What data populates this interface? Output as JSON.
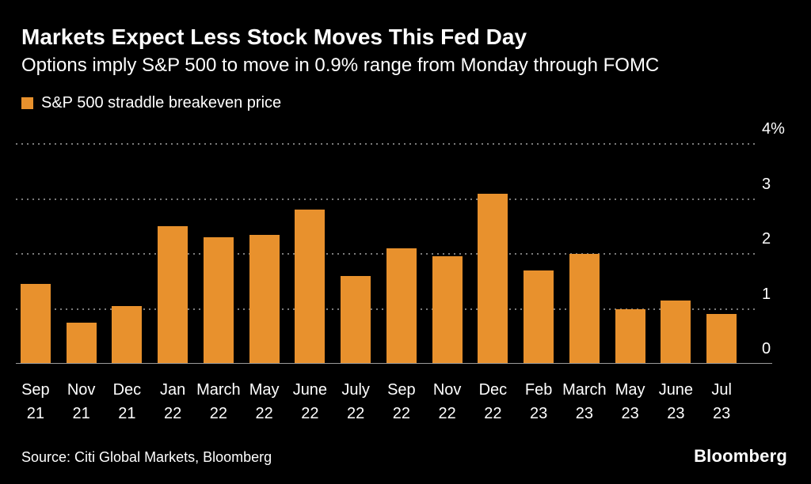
{
  "colors": {
    "background": "#000000",
    "bar": "#E8912D",
    "text": "#FFFFFF"
  },
  "footer": {
    "source": "Source: Citi Global Markets, Bloomberg",
    "brand": "Bloomberg"
  },
  "chart_data": {
    "type": "bar",
    "title": "Markets Expect Less Stock Moves This Fed Day",
    "subtitle": "Options imply S&P 500 to move in 0.9% range from Monday through FOMC",
    "legend": [
      "S&P 500 straddle breakeven price"
    ],
    "legend_position": "top-left",
    "categories": [
      "Sep 21",
      "Nov 21",
      "Dec 21",
      "Jan 22",
      "March 22",
      "May 22",
      "June 22",
      "July 22",
      "Sep 22",
      "Nov 22",
      "Dec 22",
      "Feb 23",
      "March 23",
      "May 23",
      "June 23",
      "Jul 23"
    ],
    "values": [
      1.45,
      0.75,
      1.05,
      2.5,
      2.3,
      2.35,
      2.8,
      1.6,
      2.1,
      1.95,
      3.1,
      1.7,
      2.0,
      1.0,
      1.15,
      0.9
    ],
    "xlabel": "",
    "ylabel": "",
    "ylim": [
      0,
      4
    ],
    "yticks": [
      {
        "value": 4,
        "label": "4%"
      },
      {
        "value": 3,
        "label": "3"
      },
      {
        "value": 2,
        "label": "2"
      },
      {
        "value": 1,
        "label": "1"
      },
      {
        "value": 0,
        "label": "0"
      }
    ],
    "grid": "horizontal-dotted",
    "bar_color": "#E8912D"
  }
}
